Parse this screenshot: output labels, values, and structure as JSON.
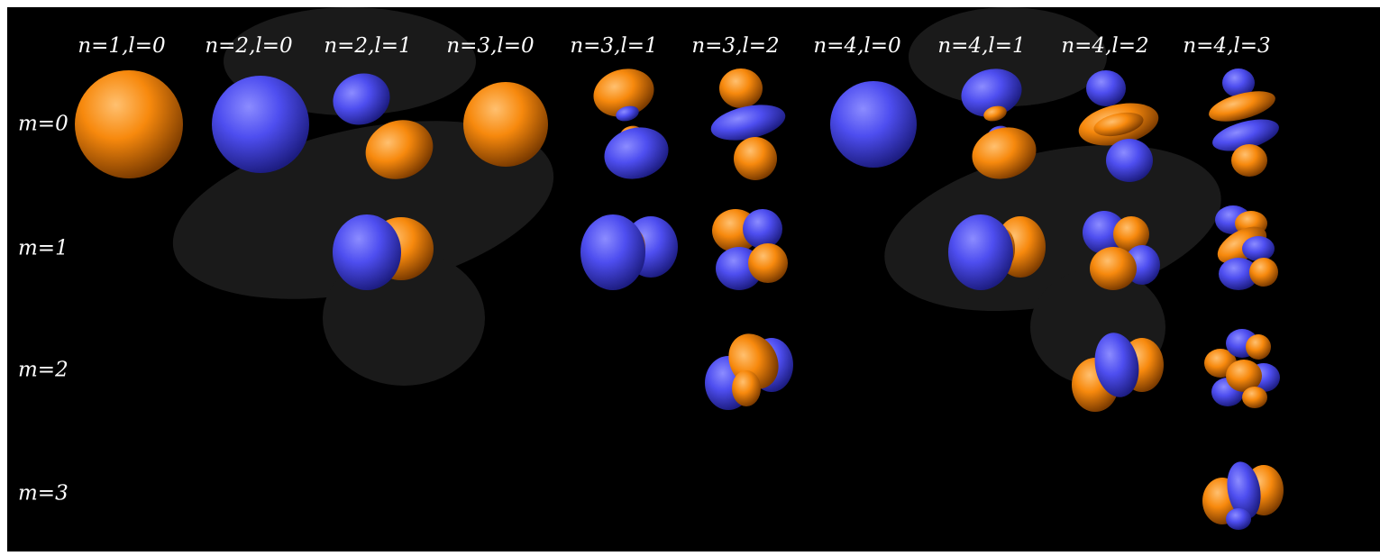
{
  "colors": {
    "background": "#000000",
    "page_border": "#ffffff",
    "text": "#ffffff",
    "positive_lobe": "#f7890d",
    "negative_lobe": "#4e4ef0"
  },
  "column_labels": [
    "n=1,l=0",
    "n=2,l=0",
    "n=2,l=1",
    "n=3,l=0",
    "n=3,l=1",
    "n=3,l=2",
    "n=4,l=0",
    "n=4,l=1",
    "n=4,l=2",
    "n=4,l=3"
  ],
  "row_labels": [
    "m=0",
    "m=1",
    "m=2",
    "m=3"
  ],
  "orbitals": [
    {
      "n": 1,
      "l": 0,
      "m": 0,
      "shape": "s",
      "color": "positive_lobe"
    },
    {
      "n": 2,
      "l": 0,
      "m": 0,
      "shape": "s",
      "color": "negative_lobe"
    },
    {
      "n": 2,
      "l": 1,
      "m": 0,
      "shape": "p-z"
    },
    {
      "n": 3,
      "l": 0,
      "m": 0,
      "shape": "s",
      "color": "positive_lobe"
    },
    {
      "n": 3,
      "l": 1,
      "m": 0,
      "shape": "p-z-noded"
    },
    {
      "n": 3,
      "l": 2,
      "m": 0,
      "shape": "d-z2"
    },
    {
      "n": 4,
      "l": 0,
      "m": 0,
      "shape": "s",
      "color": "negative_lobe"
    },
    {
      "n": 4,
      "l": 1,
      "m": 0,
      "shape": "p-z-noded"
    },
    {
      "n": 4,
      "l": 2,
      "m": 0,
      "shape": "d-z2-noded"
    },
    {
      "n": 4,
      "l": 3,
      "m": 0,
      "shape": "f-z3"
    },
    {
      "n": 2,
      "l": 1,
      "m": 1,
      "shape": "p-x"
    },
    {
      "n": 3,
      "l": 1,
      "m": 1,
      "shape": "p-x-noded"
    },
    {
      "n": 3,
      "l": 2,
      "m": 1,
      "shape": "d-xz"
    },
    {
      "n": 4,
      "l": 1,
      "m": 1,
      "shape": "p-x-noded"
    },
    {
      "n": 4,
      "l": 2,
      "m": 1,
      "shape": "d-xz-noded"
    },
    {
      "n": 4,
      "l": 3,
      "m": 1,
      "shape": "f-xz2"
    },
    {
      "n": 3,
      "l": 2,
      "m": 2,
      "shape": "d-xy"
    },
    {
      "n": 4,
      "l": 2,
      "m": 2,
      "shape": "d-xy-noded"
    },
    {
      "n": 4,
      "l": 3,
      "m": 2,
      "shape": "f-xyz"
    },
    {
      "n": 4,
      "l": 3,
      "m": 3,
      "shape": "f-x3"
    }
  ]
}
